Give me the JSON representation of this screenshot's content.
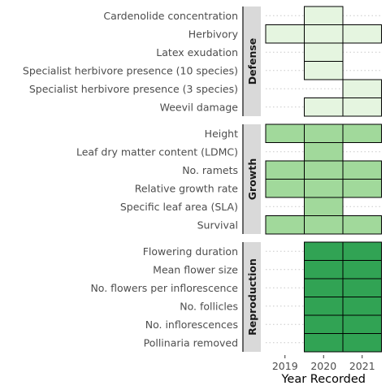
{
  "chart_data": {
    "type": "heatmap",
    "x_categories": [
      "2019",
      "2020",
      "2021"
    ],
    "xlabel": "Year Recorded",
    "ylabel": "",
    "title": "",
    "grid": "dotted horizontal",
    "panels": [
      {
        "name": "Defense",
        "color": "#e5f5e0",
        "traits": [
          {
            "label": "Cardenolide concentration",
            "years": [
              "2020"
            ]
          },
          {
            "label": "Herbivory",
            "years": [
              "2019",
              "2020",
              "2021"
            ]
          },
          {
            "label": "Latex exudation",
            "years": [
              "2020"
            ]
          },
          {
            "label": "Specialist herbivore presence (10 species)",
            "years": [
              "2020"
            ]
          },
          {
            "label": "Specialist herbivore presence (3 species)",
            "years": [
              "2021"
            ]
          },
          {
            "label": "Weevil damage",
            "years": [
              "2020",
              "2021"
            ]
          }
        ]
      },
      {
        "name": "Growth",
        "color": "#a1d99b",
        "traits": [
          {
            "label": "Height",
            "years": [
              "2019",
              "2020",
              "2021"
            ]
          },
          {
            "label": "Leaf dry matter content (LDMC)",
            "years": [
              "2020"
            ]
          },
          {
            "label": "No. ramets",
            "years": [
              "2019",
              "2020",
              "2021"
            ]
          },
          {
            "label": "Relative growth rate",
            "years": [
              "2019",
              "2020",
              "2021"
            ]
          },
          {
            "label": "Specific leaf area (SLA)",
            "years": [
              "2020"
            ]
          },
          {
            "label": "Survival",
            "years": [
              "2019",
              "2020",
              "2021"
            ]
          }
        ]
      },
      {
        "name": "Reproduction",
        "color": "#31a354",
        "traits": [
          {
            "label": "Flowering duration",
            "years": [
              "2020",
              "2021"
            ]
          },
          {
            "label": "Mean flower size",
            "years": [
              "2020",
              "2021"
            ]
          },
          {
            "label": "No. flowers per inflorescence",
            "years": [
              "2020",
              "2021"
            ]
          },
          {
            "label": "No. follicles",
            "years": [
              "2020",
              "2021"
            ]
          },
          {
            "label": "No. inflorescences",
            "years": [
              "2020",
              "2021"
            ]
          },
          {
            "label": "Pollinaria removed",
            "years": [
              "2020",
              "2021"
            ]
          }
        ]
      }
    ]
  }
}
